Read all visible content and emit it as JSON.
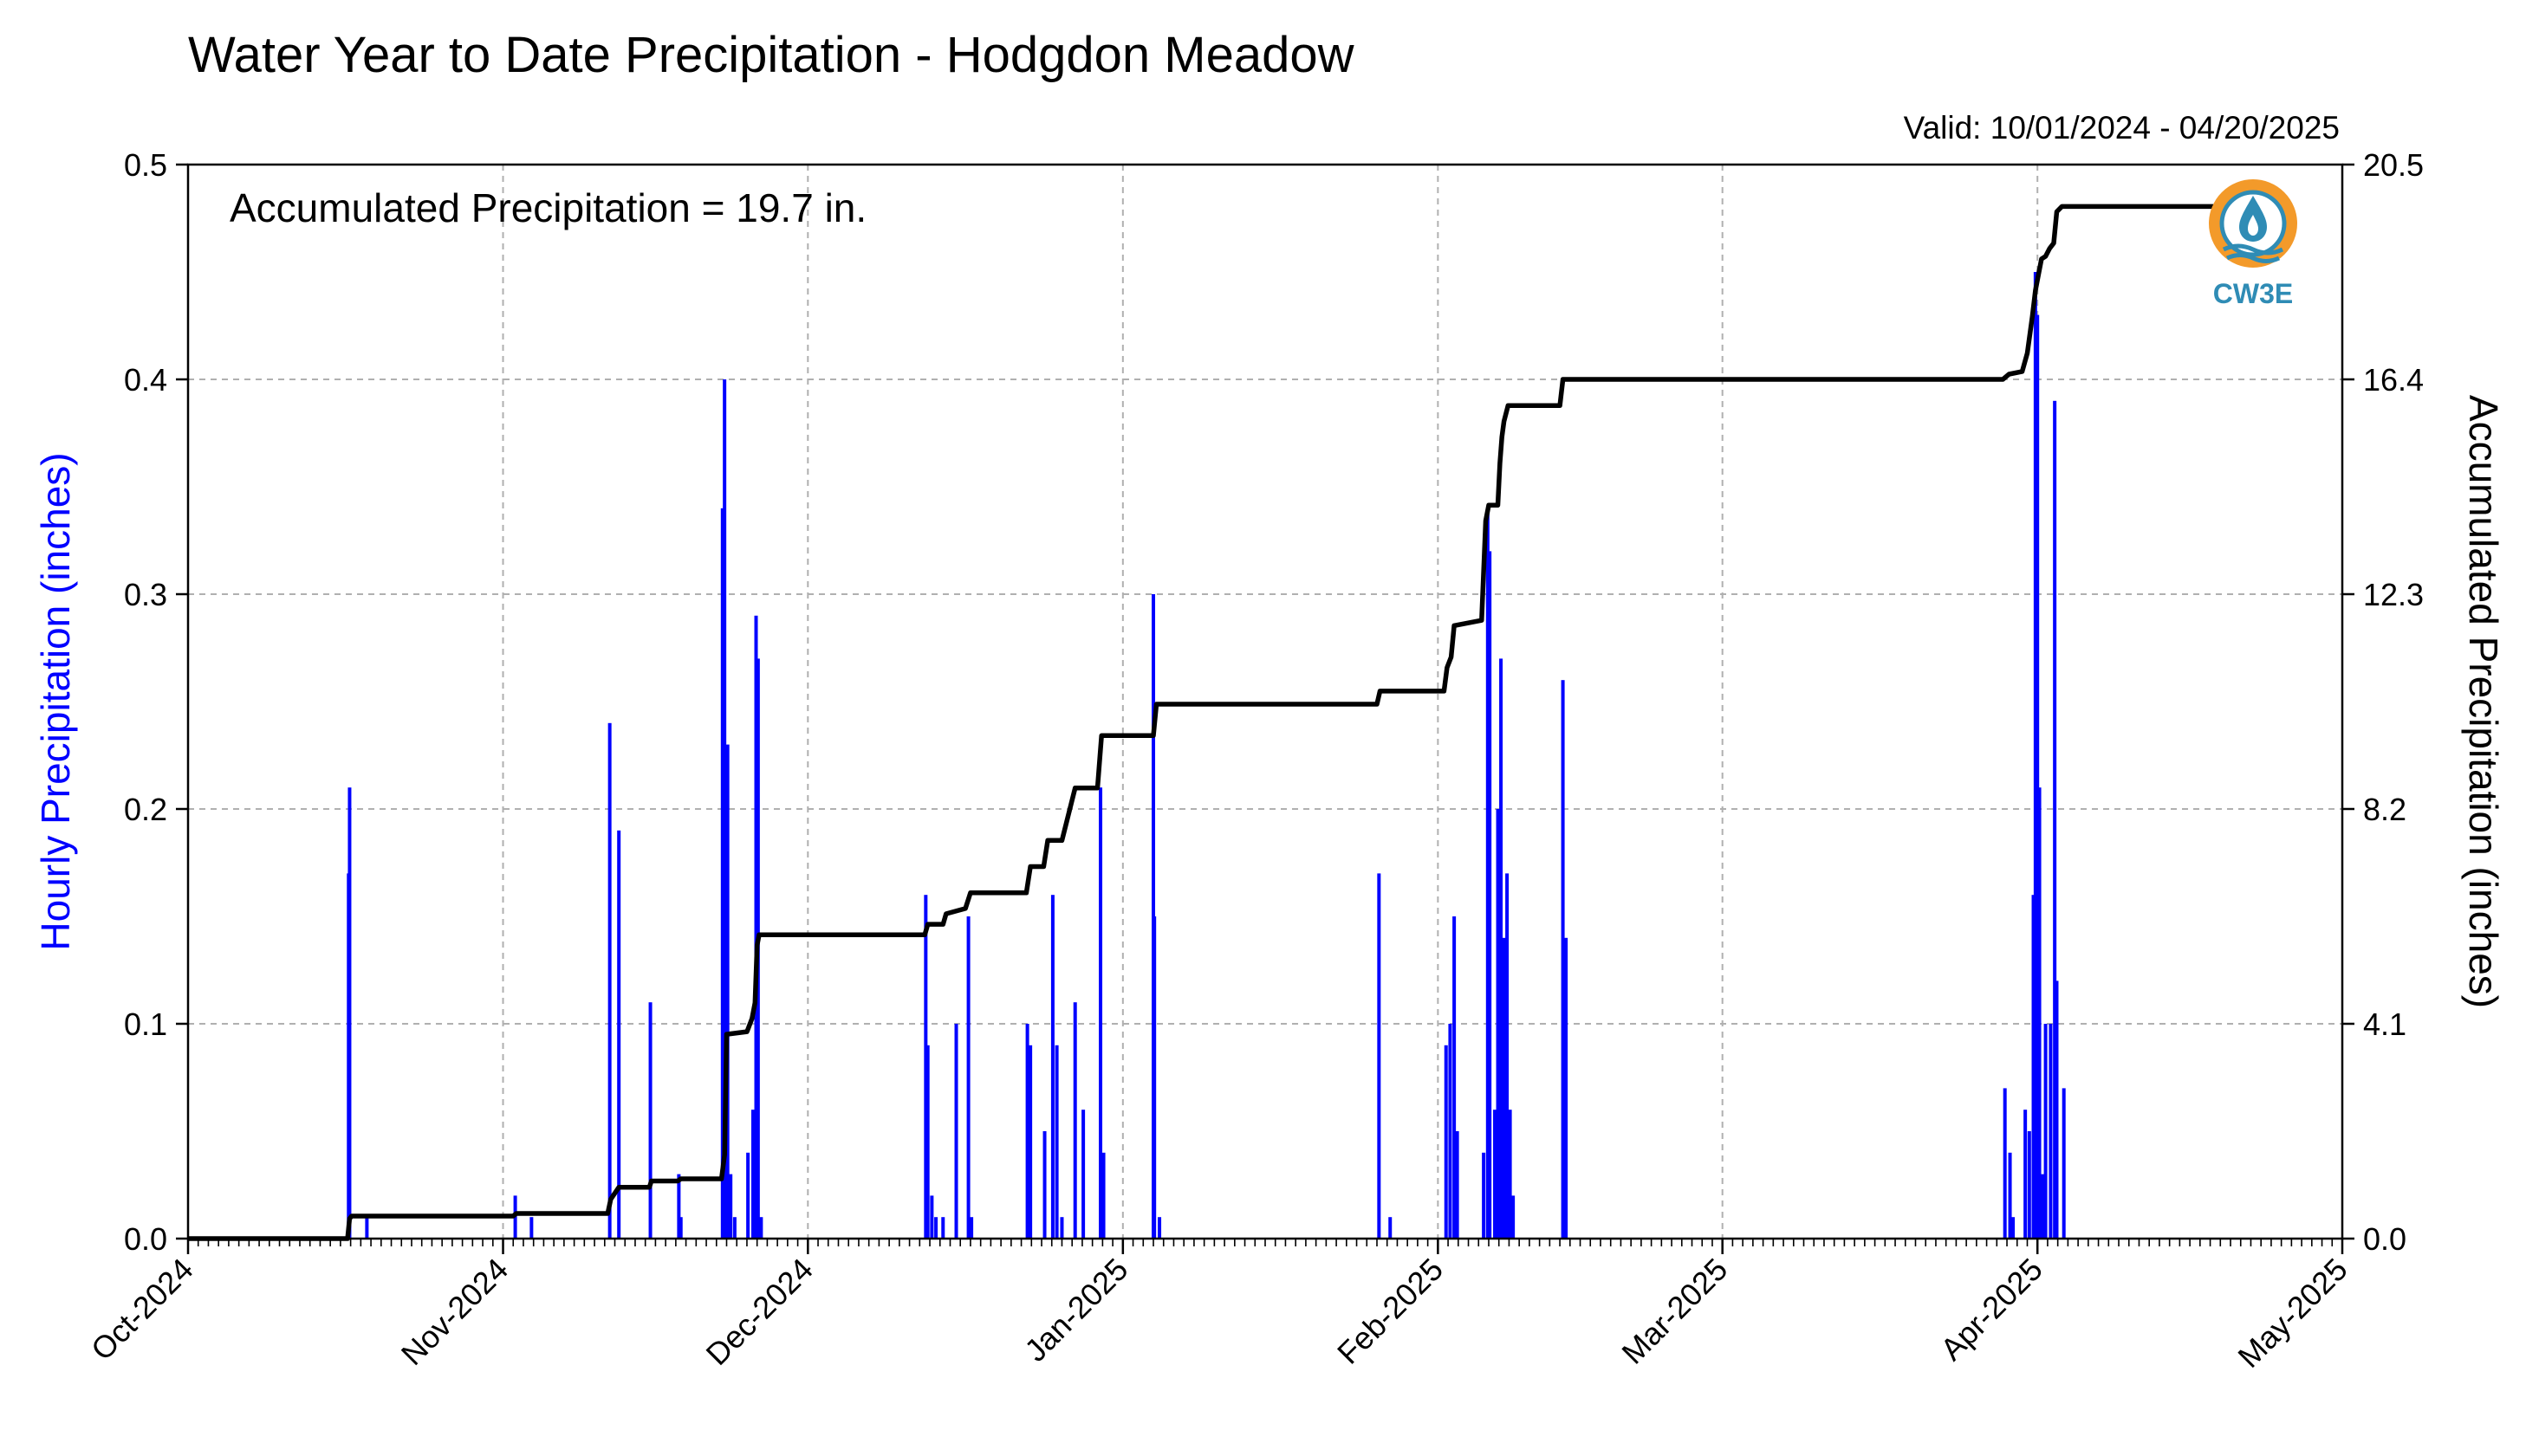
{
  "chart_data": {
    "type": "bar",
    "title": "Water Year to Date Precipitation - Hodgdon Meadow",
    "valid_label": "Valid: 10/01/2024 - 04/20/2025",
    "annotation": "Accumulated Precipitation = 19.7 in.",
    "ylabel_left": "Hourly Precipitation (inches)",
    "ylabel_right": "Accumulated Precipitation (inches)",
    "left_ticks": [
      "0.0",
      "0.1",
      "0.2",
      "0.3",
      "0.4",
      "0.5"
    ],
    "right_ticks": [
      "0.0",
      "4.1",
      "8.2",
      "12.3",
      "16.4",
      "20.5"
    ],
    "ylim_left": [
      0,
      0.5
    ],
    "ylim_right": [
      0,
      20.5
    ],
    "xlim_days": [
      0,
      212
    ],
    "x_ticks": [
      {
        "label": "Oct-2024",
        "day": 0
      },
      {
        "label": "Nov-2024",
        "day": 31
      },
      {
        "label": "Dec-2024",
        "day": 61
      },
      {
        "label": "Jan-2025",
        "day": 92
      },
      {
        "label": "Feb-2025",
        "day": 123
      },
      {
        "label": "Mar-2025",
        "day": 151
      },
      {
        "label": "Apr-2025",
        "day": 182
      },
      {
        "label": "May-2025",
        "day": 212
      }
    ],
    "grid": true,
    "bar_color": "#0000ff",
    "line_color": "#000000",
    "series": [
      {
        "type": "bar",
        "values": [
          [
            15.8,
            0.17
          ],
          [
            15.9,
            0.21
          ],
          [
            17.6,
            0.01
          ],
          [
            32.2,
            0.02
          ],
          [
            33.8,
            0.01
          ],
          [
            41.5,
            0.24
          ],
          [
            42.4,
            0.19
          ],
          [
            45.5,
            0.11
          ],
          [
            48.3,
            0.03
          ],
          [
            48.5,
            0.01
          ],
          [
            52.6,
            0.34
          ],
          [
            52.8,
            0.4
          ],
          [
            53.1,
            0.23
          ],
          [
            53.4,
            0.03
          ],
          [
            53.8,
            0.01
          ],
          [
            55.1,
            0.04
          ],
          [
            55.6,
            0.06
          ],
          [
            55.9,
            0.29
          ],
          [
            56.1,
            0.27
          ],
          [
            56.4,
            0.01
          ],
          [
            72.6,
            0.16
          ],
          [
            72.8,
            0.09
          ],
          [
            73.2,
            0.02
          ],
          [
            73.6,
            0.01
          ],
          [
            74.3,
            0.01
          ],
          [
            75.6,
            0.1
          ],
          [
            76.8,
            0.15
          ],
          [
            77.1,
            0.01
          ],
          [
            82.6,
            0.1
          ],
          [
            82.9,
            0.09
          ],
          [
            84.3,
            0.05
          ],
          [
            85.1,
            0.16
          ],
          [
            85.5,
            0.09
          ],
          [
            86.0,
            0.01
          ],
          [
            87.3,
            0.11
          ],
          [
            88.1,
            0.06
          ],
          [
            89.8,
            0.21
          ],
          [
            90.1,
            0.04
          ],
          [
            95.0,
            0.3
          ],
          [
            95.1,
            0.15
          ],
          [
            95.6,
            0.01
          ],
          [
            117.2,
            0.17
          ],
          [
            118.3,
            0.01
          ],
          [
            123.8,
            0.09
          ],
          [
            124.2,
            0.1
          ],
          [
            124.6,
            0.15
          ],
          [
            124.9,
            0.05
          ],
          [
            127.5,
            0.04
          ],
          [
            127.9,
            0.34
          ],
          [
            128.1,
            0.32
          ],
          [
            128.6,
            0.06
          ],
          [
            128.9,
            0.2
          ],
          [
            129.2,
            0.27
          ],
          [
            129.5,
            0.14
          ],
          [
            129.8,
            0.17
          ],
          [
            130.1,
            0.06
          ],
          [
            130.4,
            0.02
          ],
          [
            135.3,
            0.26
          ],
          [
            135.6,
            0.14
          ],
          [
            178.8,
            0.07
          ],
          [
            179.3,
            0.04
          ],
          [
            179.6,
            0.01
          ],
          [
            180.8,
            0.06
          ],
          [
            181.2,
            0.05
          ],
          [
            181.6,
            0.16
          ],
          [
            181.8,
            0.45
          ],
          [
            182.0,
            0.43
          ],
          [
            182.2,
            0.21
          ],
          [
            182.5,
            0.03
          ],
          [
            182.8,
            0.1
          ],
          [
            183.3,
            0.1
          ],
          [
            183.7,
            0.39
          ],
          [
            183.9,
            0.12
          ],
          [
            184.6,
            0.07
          ]
        ]
      },
      {
        "type": "line",
        "values": [
          [
            0,
            0
          ],
          [
            15.7,
            0
          ],
          [
            15.9,
            0.38
          ],
          [
            16.1,
            0.43
          ],
          [
            32.0,
            0.43
          ],
          [
            32.3,
            0.48
          ],
          [
            41.3,
            0.48
          ],
          [
            41.6,
            0.75
          ],
          [
            42.4,
            0.98
          ],
          [
            45.4,
            0.98
          ],
          [
            45.6,
            1.1
          ],
          [
            48.2,
            1.1
          ],
          [
            48.5,
            1.14
          ],
          [
            52.5,
            1.14
          ],
          [
            52.8,
            1.6
          ],
          [
            53.0,
            3.9
          ],
          [
            55.0,
            3.95
          ],
          [
            55.5,
            4.2
          ],
          [
            55.8,
            4.5
          ],
          [
            56.0,
            5.6
          ],
          [
            56.2,
            5.8
          ],
          [
            72.5,
            5.8
          ],
          [
            72.8,
            6.0
          ],
          [
            74.3,
            6.0
          ],
          [
            74.6,
            6.2
          ],
          [
            76.5,
            6.3
          ],
          [
            77.0,
            6.6
          ],
          [
            82.5,
            6.6
          ],
          [
            82.9,
            7.1
          ],
          [
            84.2,
            7.1
          ],
          [
            84.6,
            7.6
          ],
          [
            86.0,
            7.6
          ],
          [
            87.3,
            8.6
          ],
          [
            89.5,
            8.6
          ],
          [
            89.9,
            9.6
          ],
          [
            95.0,
            9.6
          ],
          [
            95.3,
            10.2
          ],
          [
            117.0,
            10.2
          ],
          [
            117.3,
            10.45
          ],
          [
            123.6,
            10.45
          ],
          [
            123.9,
            10.9
          ],
          [
            124.3,
            11.1
          ],
          [
            124.6,
            11.7
          ],
          [
            127.3,
            11.8
          ],
          [
            127.7,
            13.7
          ],
          [
            128.0,
            14.0
          ],
          [
            128.9,
            14.0
          ],
          [
            129.1,
            14.8
          ],
          [
            129.3,
            15.3
          ],
          [
            129.5,
            15.6
          ],
          [
            129.9,
            15.9
          ],
          [
            135.0,
            15.9
          ],
          [
            135.3,
            16.4
          ],
          [
            178.6,
            16.4
          ],
          [
            179.2,
            16.5
          ],
          [
            180.5,
            16.55
          ],
          [
            181.0,
            16.9
          ],
          [
            181.5,
            17.6
          ],
          [
            181.8,
            18.1
          ],
          [
            182.1,
            18.4
          ],
          [
            182.4,
            18.7
          ],
          [
            182.8,
            18.75
          ],
          [
            183.2,
            18.9
          ],
          [
            183.6,
            19.0
          ],
          [
            183.9,
            19.6
          ],
          [
            184.4,
            19.7
          ],
          [
            200,
            19.7
          ]
        ]
      }
    ]
  },
  "logo": {
    "text": "CW3E",
    "ring_color": "#f39a2a",
    "drop_color": "#2f8cb5",
    "wave_color": "#2f8cb5"
  }
}
